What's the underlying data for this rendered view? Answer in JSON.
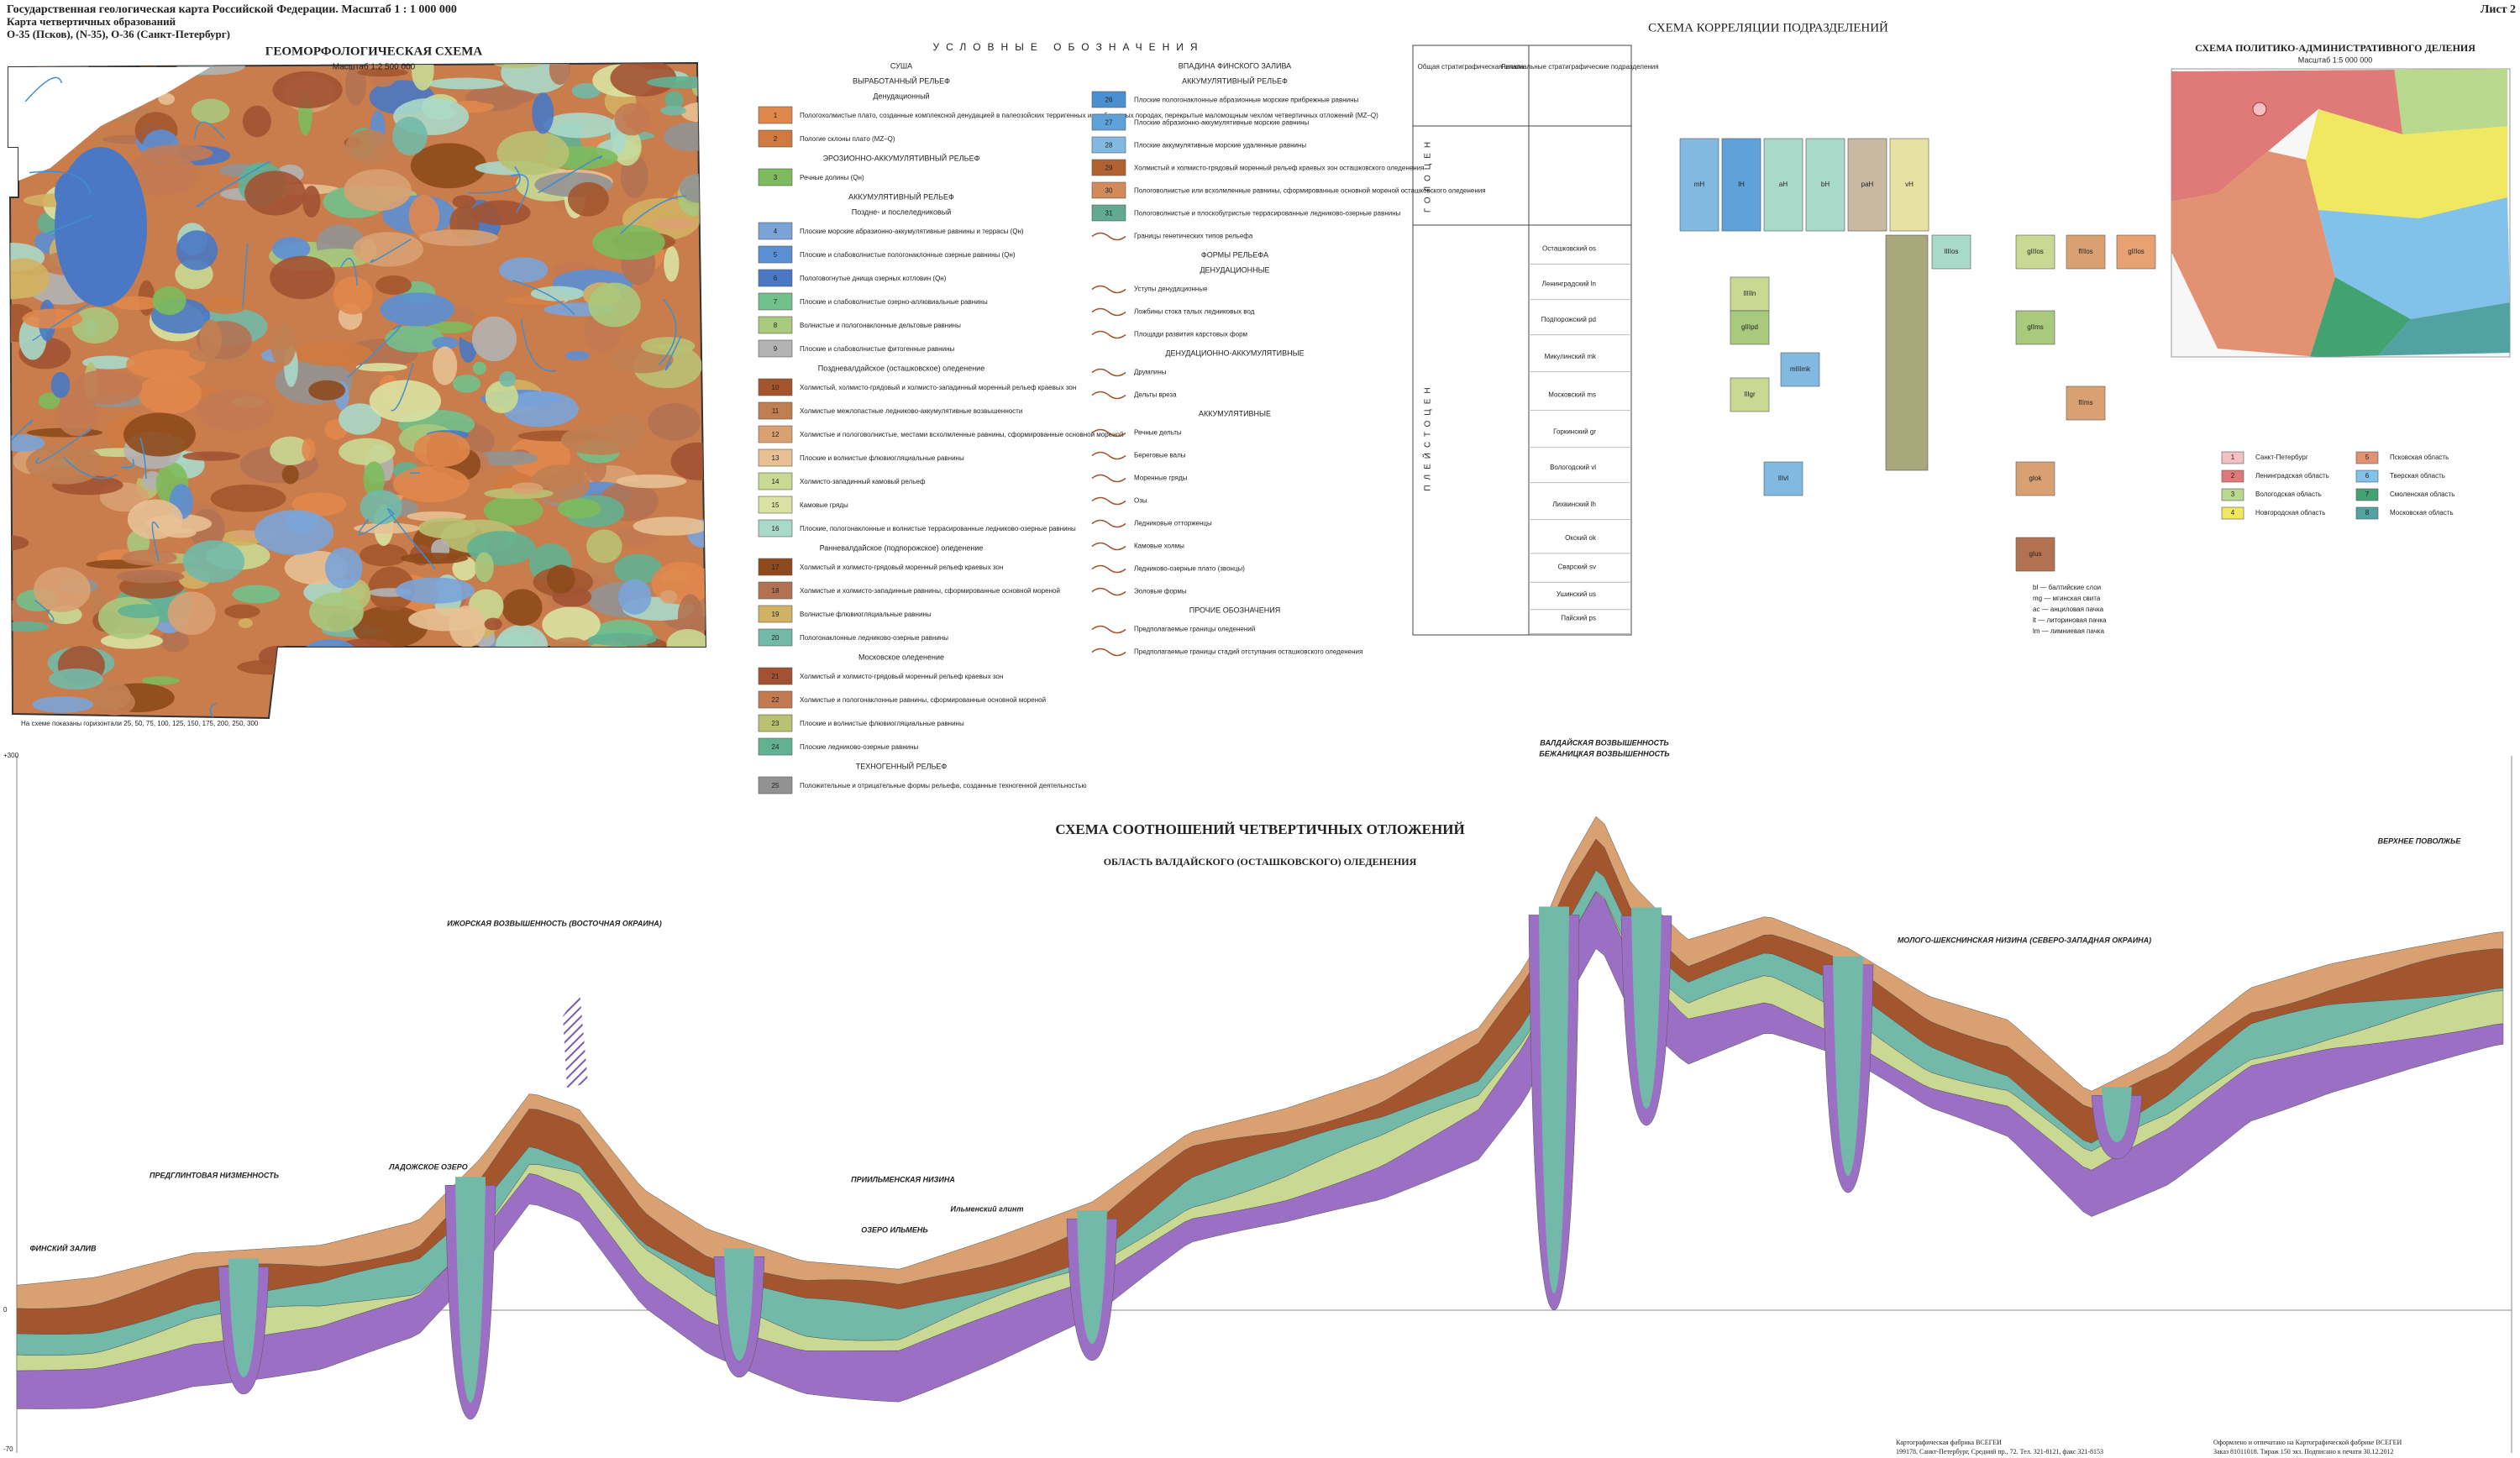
{
  "header": {
    "lines": [
      "Государственная геологическая карта Российской Федерации. Масштаб 1 : 1 000 000",
      "Карта четвертичных образований",
      "О-35 (Псков), (N-35), О-36 (Санкт-Петербург)"
    ],
    "sheet": "Лист 2"
  },
  "geomorph": {
    "title": "ГЕОМОРФОЛОГИЧЕСКАЯ СХЕМА",
    "scale": "Масштаб 1:2 500 000",
    "note": "На схеме показаны горизонтали 25, 50, 75, 100, 125, 150, 175, 200, 250, 300"
  },
  "legend": {
    "title": "УСЛОВНЫЕ ОБОЗНАЧЕНИЯ",
    "left": [
      {
        "heading": "СУША"
      },
      {
        "heading": "ВЫРАБОТАННЫЙ РЕЛЬЕФ"
      },
      {
        "heading": "Денудационный"
      },
      {
        "num": "1",
        "color": "#e0874c",
        "label": "Пологохолмистые плато, созданные комплексной денудацией в палеозойских терригенных и карбонатных породах, перекрытые маломощным чехлом четвертичных отложений (MZ–Q)"
      },
      {
        "num": "2",
        "color": "#cf7a40",
        "label": "Пологие склоны плато (MZ–Q)"
      },
      {
        "heading": "ЭРОЗИОННО-АККУМУЛЯТИВНЫЙ РЕЛЬЕФ"
      },
      {
        "num": "3",
        "color": "#7dbb5c",
        "label": "Речные долины (Qн)"
      },
      {
        "heading": "АККУМУЛЯТИВНЫЙ РЕЛЬЕФ"
      },
      {
        "heading": "Поздне- и послеледниковый"
      },
      {
        "num": "4",
        "color": "#7aa4d8",
        "label": "Плоские морские абразионно-аккумулятивные равнины и террасы (Qн)"
      },
      {
        "num": "5",
        "color": "#5b8fd4",
        "label": "Плоские и слабоволнистые пологонаклонные озерные равнины (Qн)"
      },
      {
        "num": "6",
        "color": "#4a78c4",
        "label": "Пологовогнутые днища озерных котловин (Qн)"
      },
      {
        "num": "7",
        "color": "#72c08c",
        "label": "Плоские и слабоволнистые озерно-аллювиальные равнины"
      },
      {
        "num": "8",
        "color": "#a9c97c",
        "label": "Волнистые и пологонаклонные дельтовые равнины"
      },
      {
        "num": "9",
        "color": "#b3b3b3",
        "label": "Плоские и слабоволнистые фитогенные равнины"
      },
      {
        "heading": "Поздневалдайское (осташковское) оледенение"
      },
      {
        "num": "10",
        "color": "#a3562e",
        "label": "Холмистый, холмисто-грядовый и холмисто-западинный моренный рельеф краевых зон"
      },
      {
        "num": "11",
        "color": "#c07f52",
        "label": "Холмистые межлопастные ледниково-аккумулятивные возвышенности"
      },
      {
        "num": "12",
        "color": "#d9a172",
        "label": "Холмистые и пологоволнистые, местами всхолмленные равнины, сформированные основной мореной"
      },
      {
        "num": "13",
        "color": "#e7c193",
        "label": "Плоские и волнистые флювиогляциальные равнины"
      },
      {
        "num": "14",
        "color": "#c9d993",
        "label": "Холмисто-западинный камовый рельеф"
      },
      {
        "num": "15",
        "color": "#d9e2a2",
        "label": "Камовые гряды"
      },
      {
        "num": "16",
        "color": "#a9d9c9",
        "label": "Плоские, пологонаклонные и волнистые террасированные ледниково-озерные равнины"
      },
      {
        "heading": "Ранневалдайское (подпорожское) оледенение"
      },
      {
        "num": "17",
        "color": "#8e4a1c",
        "label": "Холмистый и холмисто-грядовый моренный рельеф краевых зон"
      },
      {
        "num": "18",
        "color": "#b27252",
        "label": "Холмистые и холмисто-западинные равнины, сформированные основной мореной"
      },
      {
        "num": "19",
        "color": "#d1b163",
        "label": "Волнистые флювиогляциальные равнины"
      },
      {
        "num": "20",
        "color": "#72b9a9",
        "label": "Пологонаклонные ледниково-озерные равнины"
      },
      {
        "heading": "Московское оледенение"
      },
      {
        "num": "21",
        "color": "#a25232",
        "label": "Холмистый и холмисто-грядовый моренный рельеф краевых зон"
      },
      {
        "num": "22",
        "color": "#c27a52",
        "label": "Холмистые и пологонаклонные равнины, сформированные основной мореной"
      },
      {
        "num": "23",
        "color": "#b9c172",
        "label": "Плоские и волнистые флювиогляциальные равнины"
      },
      {
        "num": "24",
        "color": "#62b192",
        "label": "Плоские ледниково-озерные равнины"
      },
      {
        "heading": "ТЕХНОГЕННЫЙ РЕЛЬЕФ"
      },
      {
        "num": "25",
        "color": "#929292",
        "label": "Положительные и отрицательные формы рельефа, созданные техногенной деятельностью"
      }
    ],
    "right": [
      {
        "heading": "ВПАДИНА ФИНСКОГО ЗАЛИВА"
      },
      {
        "heading": "АККУМУЛЯТИВНЫЙ РЕЛЬЕФ"
      },
      {
        "num": "26",
        "color": "#4a8fd1",
        "label": "Плоские пологонаклонные абразионные морские прибрежные равнины"
      },
      {
        "num": "27",
        "color": "#5fa1d9",
        "label": "Плоские абразионно-аккумулятивные морские равнины"
      },
      {
        "num": "28",
        "color": "#82b9e1",
        "label": "Плоские аккумулятивные морские удаленные равнины"
      },
      {
        "num": "29",
        "color": "#b26232",
        "label": "Холмистый и холмисто-грядовый моренный рельеф краевых зон осташковского оледенения"
      },
      {
        "num": "30",
        "color": "#d28a5a",
        "label": "Пологоволнистые или всхолмленные равнины, сформированные основной мореной осташковского оледенения"
      },
      {
        "num": "31",
        "color": "#62a992",
        "label": "Пологоволнистые и плоскобугристые террасированные ледниково-озерные равнины"
      },
      {
        "form": "Границы генетических типов рельефа"
      },
      {
        "heading": "ФОРМЫ РЕЛЬЕФА"
      },
      {
        "heading": "ДЕНУДАЦИОННЫЕ"
      },
      {
        "form": "Уступы денудационные"
      },
      {
        "form": "Ложбины стока талых ледниковых вод"
      },
      {
        "form": "Площади развития карстовых форм"
      },
      {
        "heading": "ДЕНУДАЦИОННО-АККУМУЛЯТИВНЫЕ"
      },
      {
        "form": "Друмлины"
      },
      {
        "form": "Дельты врезa"
      },
      {
        "heading": "АККУМУЛЯТИВНЫЕ"
      },
      {
        "form": "Речные дельты"
      },
      {
        "form": "Береговые валы"
      },
      {
        "form": "Моренные гряды"
      },
      {
        "form": "Озы"
      },
      {
        "form": "Ледниковые отторженцы"
      },
      {
        "form": "Камовые холмы"
      },
      {
        "form": "Ледниково-озерные плато (звонцы)"
      },
      {
        "form": "Эоловые формы"
      },
      {
        "heading": "ПРОЧИЕ ОБОЗНАЧЕНИЯ"
      },
      {
        "form": "Предполагаемые границы оледенений"
      },
      {
        "form": "Предполагаемые границы стадий отступания осташковского оледенения"
      }
    ]
  },
  "correlation": {
    "title": "СХЕМА КОРРЕЛЯЦИИ ПОДРАЗДЕЛЕНИЙ",
    "col1": "Общая стратиграфическая шкала",
    "col2": "Региональные стратиграфические подразделения",
    "periods": [
      "ГОЛОЦЕН",
      "ПЛЕЙСТОЦЕН"
    ],
    "stages": [
      "Осташковский os",
      "Ленинградский ln",
      "Подпорожский pd",
      "Микулинский mk",
      "Московский ms",
      "Горкинский gr",
      "Вологодский vl",
      "Лихвинский lh",
      "Окский ok",
      "Сварский sv",
      "Ушинский us",
      "Пайский ps"
    ],
    "boxes": [
      {
        "label": "mH",
        "color": "#82b9e1"
      },
      {
        "label": "lH",
        "color": "#5fa1d9"
      },
      {
        "label": "aH",
        "color": "#a9d9c9"
      },
      {
        "label": "bH",
        "color": "#a9d9c9"
      },
      {
        "label": "paH",
        "color": "#c9b9a2"
      },
      {
        "label": "vH",
        "color": "#e7e2a2"
      },
      {
        "label": "lIIIos",
        "color": "#a9d9c9"
      },
      {
        "label": "gIIIos",
        "color": "#c9d993"
      },
      {
        "label": "fIIIos",
        "color": "#d9a172"
      },
      {
        "label": "gIIIos",
        "color": "#e7a172"
      },
      {
        "label": "lIIIln",
        "color": "#c9d993"
      },
      {
        "label": "gIIIpd",
        "color": "#a9c97c"
      },
      {
        "label": "mIIImk",
        "color": "#82b9e1"
      },
      {
        "label": "gIIms",
        "color": "#a9c97c"
      },
      {
        "label": "fIIms",
        "color": "#d9a172"
      },
      {
        "label": "lIIgr",
        "color": "#c9d993"
      },
      {
        "label": "lIIvl",
        "color": "#82b9e1"
      },
      {
        "label": "gIok",
        "color": "#d9a172"
      },
      {
        "label": "gIus",
        "color": "#b27252"
      }
    ],
    "notes": [
      "bl — балтийские слои",
      "mg — мгинская свита",
      "ac — анциловая пачка",
      "lt — литориновая пачка",
      "lm — лимниевая пачка"
    ]
  },
  "admin": {
    "title": "СХЕМА ПОЛИТИКО-АДМИНИСТРАТИВНОГО ДЕЛЕНИЯ",
    "scale": "Масштаб 1:5 000 000",
    "regions": [
      {
        "num": "1",
        "name": "Санкт-Петербург",
        "color": "#f3c1c1"
      },
      {
        "num": "2",
        "name": "Ленинградская область",
        "color": "#e07a78"
      },
      {
        "num": "3",
        "name": "Вологодская область",
        "color": "#b9d98f"
      },
      {
        "num": "4",
        "name": "Новгородская область",
        "color": "#f0e860"
      },
      {
        "num": "5",
        "name": "Псковская область",
        "color": "#e29272"
      },
      {
        "num": "6",
        "name": "Тверская область",
        "color": "#82c1e9"
      },
      {
        "num": "7",
        "name": "Смоленская область",
        "color": "#42a272"
      },
      {
        "num": "8",
        "name": "Московская область",
        "color": "#52a2a2"
      }
    ]
  },
  "section": {
    "title": "СХЕМА СООТНОШЕНИЙ ЧЕТВЕРТИЧНЫХ ОТЛОЖЕНИЙ",
    "subtitle": "ОБЛАСТЬ ВАЛДАЙСКОГО (ОСТАШКОВСКОГО) ОЛЕДЕНЕНИЯ",
    "axis": [
      "+300",
      "0",
      "-70"
    ],
    "places": [
      "ФИНСКИЙ ЗАЛИВ",
      "ПРЕДГЛИНТОВАЯ НИЗМЕННОСТЬ",
      "ЛАДОЖСКОЕ ОЗЕРО",
      "ИЖОРСКАЯ ВОЗВЫШЕННОСТЬ (ВОСТОЧНАЯ ОКРАИНА)",
      "ПРИИЛЬМЕНСКАЯ НИЗИНА",
      "ОЗЕРО ИЛЬМЕНЬ",
      "Ильменский глинт",
      "ВАЛДАЙСКАЯ ВОЗВЫШЕННОСТЬ",
      "БЕЖАНИЦКАЯ ВОЗВЫШЕННОСТЬ",
      "МОЛОГО-ШЕКСНИНСКАЯ НИЗИНА (СЕВЕРО-ЗАПАДНАЯ ОКРАИНА)",
      "ВЕРХНЕЕ ПОВОЛЖЬЕ"
    ]
  },
  "footer": {
    "left": [
      "Картографическая фабрика ВСЕГЕИ",
      "199178, Санкт-Петербург, Средний пр., 72. Тел. 321-8121, факс 321-8153"
    ],
    "right": [
      "Оформлено и отпечатано на Картографической фабрике ВСЕГЕИ",
      "Заказ 81011018. Тираж 150 экз. Подписано к печати 30.12.2012"
    ]
  }
}
